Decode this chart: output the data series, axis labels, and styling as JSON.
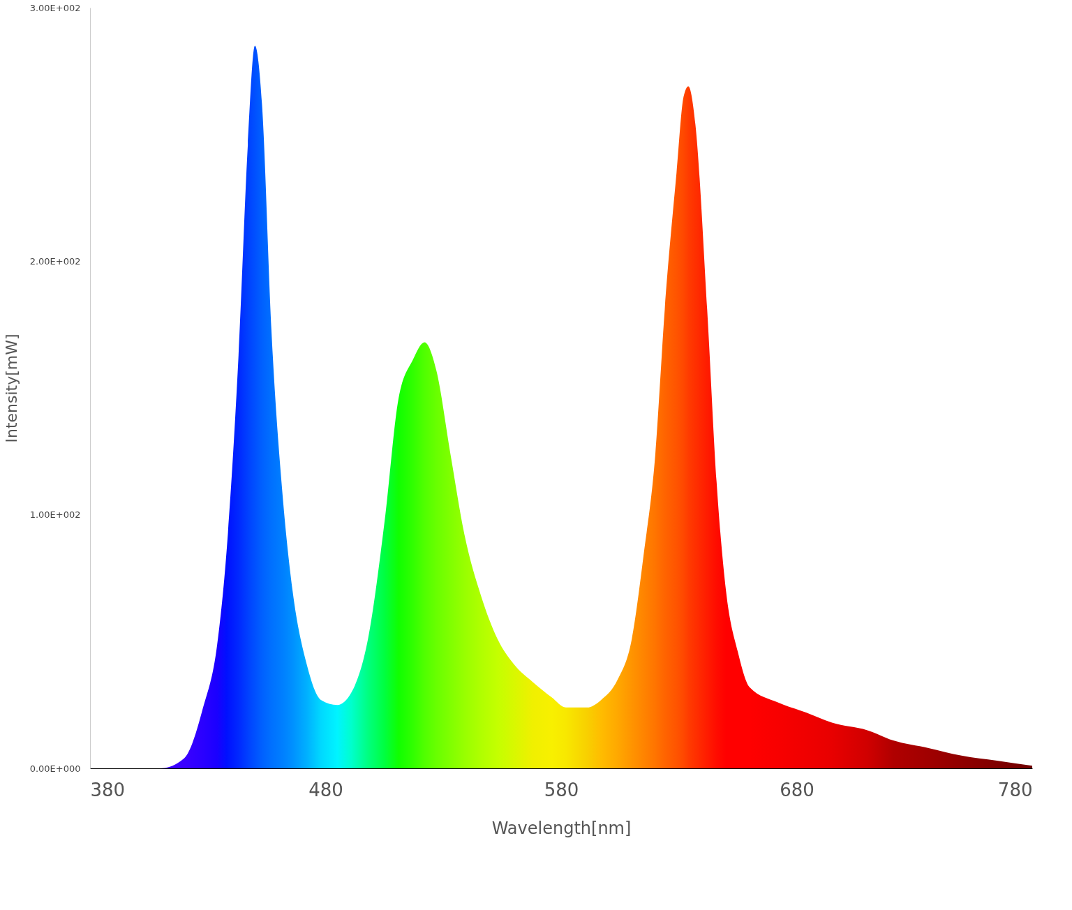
{
  "chart_data": {
    "type": "area",
    "xlabel": "Wavelength[nm]",
    "ylabel": "Intensity[mW]",
    "xlim": [
      380,
      780
    ],
    "xticks": [
      380,
      480,
      580,
      680,
      780
    ],
    "ylim": [
      0,
      300
    ],
    "yticks": [
      {
        "value": 0,
        "label": "0.00E+000"
      },
      {
        "value": 100,
        "label": "1.00E+002"
      },
      {
        "value": 200,
        "label": "2.00E+002"
      },
      {
        "value": 300,
        "label": "3.00E+002"
      }
    ],
    "grid": false,
    "x": [
      380,
      410,
      420,
      428,
      434,
      438,
      443,
      447,
      450,
      453,
      457,
      462,
      466,
      472,
      478,
      485,
      491,
      498,
      505,
      511,
      517,
      522,
      527,
      533,
      539,
      546,
      553,
      560,
      568,
      576,
      582,
      591,
      597,
      604,
      610,
      615,
      620,
      624,
      629,
      632,
      634,
      637,
      642,
      646,
      650,
      655,
      660,
      672,
      684,
      695,
      710,
      721,
      736,
      750,
      765,
      780
    ],
    "values": [
      0,
      0,
      4,
      24,
      49,
      86,
      162,
      246,
      285,
      262,
      173,
      105,
      70,
      41,
      27,
      25,
      30,
      51,
      97,
      146,
      161,
      168,
      157,
      124,
      92,
      68,
      51,
      41,
      34,
      28,
      24,
      24,
      27,
      35,
      51,
      84,
      124,
      181,
      235,
      265,
      269,
      254,
      181,
      113,
      70,
      46,
      32,
      26,
      22,
      18,
      15,
      11,
      8,
      5,
      3,
      1
    ],
    "colors": [
      "#3a00ff",
      "#3a00ff",
      "#3a00ff",
      "#2a00ff",
      "#1a00ff",
      "#0010ff",
      "#0028ff",
      "#0040ff",
      "#0050ff",
      "#0060ff",
      "#0070ff",
      "#0080ff",
      "#0090ff",
      "#00b0ff",
      "#00d8ff",
      "#00f4ff",
      "#00ffcc",
      "#00ff80",
      "#00ff40",
      "#10ff00",
      "#30ff00",
      "#50ff00",
      "#68ff00",
      "#80ff00",
      "#98ff00",
      "#b0ff00",
      "#c4ff00",
      "#d8f800",
      "#f0f000",
      "#f8f000",
      "#f8e800",
      "#f8d000",
      "#ffbc00",
      "#ffa800",
      "#ff9400",
      "#ff8400",
      "#ff7400",
      "#ff6400",
      "#ff5400",
      "#ff4800",
      "#ff3c00",
      "#ff3000",
      "#ff1c00",
      "#ff0c00",
      "#ff0000",
      "#ff0000",
      "#ff0000",
      "#f80000",
      "#f00000",
      "#e80000",
      "#d00000",
      "#b00000",
      "#a00000",
      "#900000",
      "#800000",
      "#700000"
    ]
  }
}
